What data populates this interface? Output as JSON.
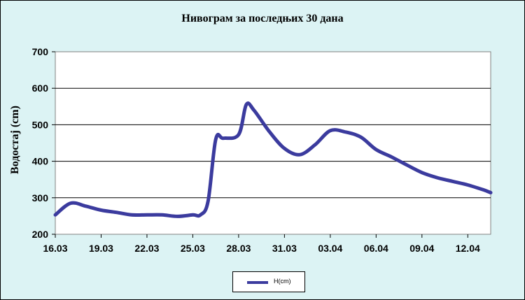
{
  "chart_data": {
    "type": "line",
    "title": "Нивограм за последњих 30 дана",
    "xlabel": "",
    "ylabel": "Водостај (cm)",
    "ylim": [
      200,
      700
    ],
    "yticks": [
      200,
      300,
      400,
      500,
      600,
      700
    ],
    "xticks": [
      "16.03",
      "19.03",
      "22.03",
      "25.03",
      "28.03",
      "31.03",
      "03.04",
      "06.04",
      "09.04",
      "12.04"
    ],
    "grid": "horizontal",
    "legend_position": "bottom",
    "line_color": "#3b3b9e",
    "plot_background": "#ffffff",
    "page_background": "#dcf3f4",
    "series": [
      {
        "name": "H(cm)",
        "x": [
          "16.03",
          "17.03",
          "18.03",
          "19.03",
          "20.03",
          "21.03",
          "22.03",
          "23.03",
          "24.03",
          "25.03",
          "25.5.03",
          "26.03",
          "26.5.03",
          "27.03",
          "28.03",
          "28.5.03",
          "29.03",
          "30.03",
          "31.03",
          "01.04",
          "02.04",
          "03.04",
          "04.04",
          "05.04",
          "06.04",
          "07.04",
          "08.04",
          "09.04",
          "10.04",
          "11.04",
          "12.04",
          "13.04",
          "13.5.04"
        ],
        "t": [
          0,
          1,
          2,
          3,
          4,
          5,
          6,
          7,
          8,
          9,
          9.5,
          10,
          10.5,
          11,
          12,
          12.5,
          13,
          14,
          15,
          16,
          17,
          18,
          19,
          20,
          21,
          22,
          23,
          24,
          25,
          26,
          27,
          28,
          28.5
        ],
        "values": [
          253,
          285,
          277,
          266,
          260,
          253,
          253,
          253,
          249,
          253,
          253,
          290,
          460,
          463,
          473,
          555,
          540,
          482,
          435,
          418,
          445,
          484,
          480,
          466,
          432,
          412,
          390,
          369,
          355,
          345,
          335,
          322,
          314
        ]
      }
    ]
  }
}
